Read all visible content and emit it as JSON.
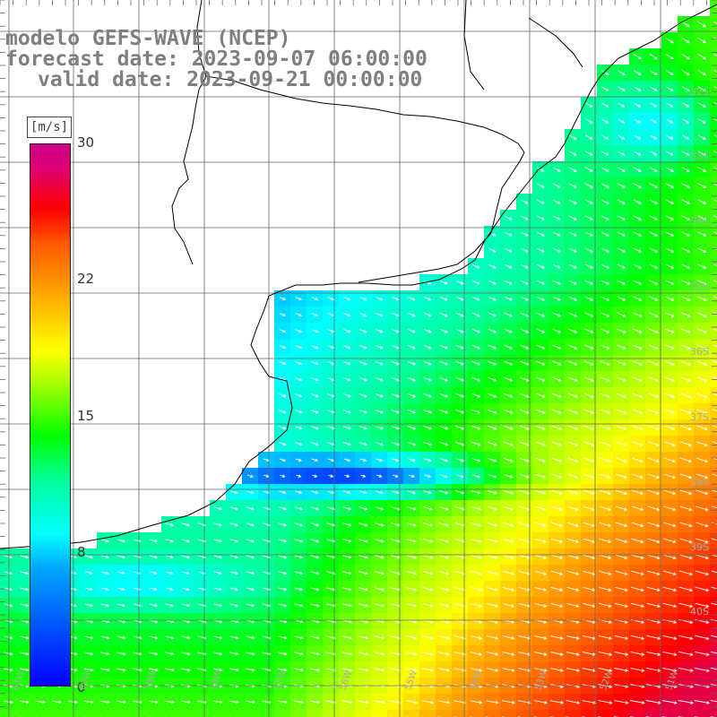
{
  "title": {
    "line1": "modelo GEFS-WAVE (NCEP)",
    "line2": "forecast date: 2023-09-07 06:00:00",
    "line3": "valid date: 2023-09-21 00:00:00"
  },
  "colorbar": {
    "unit": "[m/s]",
    "ticks": [
      "30",
      "22",
      "15",
      "8",
      "0"
    ],
    "colors": [
      "#0000ff",
      "#00aaff",
      "#00ffff",
      "#00ff00",
      "#ffff00",
      "#ffaa00",
      "#ff0000",
      "#cc0088"
    ]
  },
  "lat_labels": [
    "32S",
    "33S",
    "34S",
    "35S",
    "36S",
    "37S",
    "38S",
    "39S",
    "40S"
  ],
  "lon_labels": [
    "61W",
    "60W",
    "59W",
    "58W",
    "57W",
    "56W",
    "55W",
    "54W",
    "53W",
    "52W",
    "51W"
  ],
  "colors": {
    "grid": "#666666",
    "coast": "#000000",
    "arrow": "#ffffff",
    "land": "#ffffff"
  }
}
